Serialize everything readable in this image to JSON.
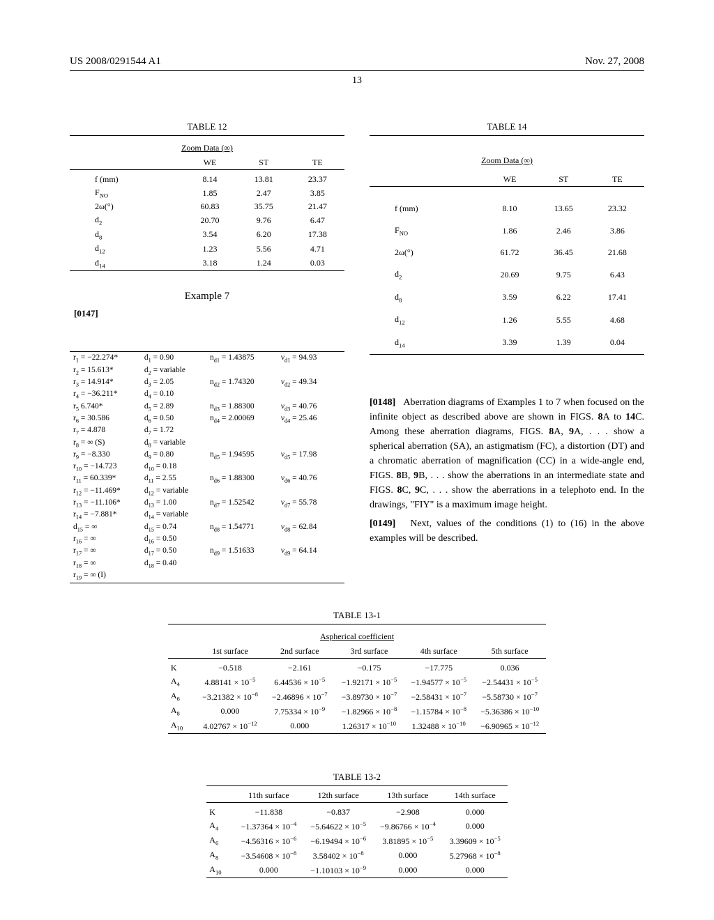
{
  "header": {
    "left": "US 2008/0291544 A1",
    "right": "Nov. 27, 2008",
    "page_number": "13"
  },
  "table12": {
    "title": "TABLE 12",
    "subtitle": "Zoom Data (∞)",
    "cols": [
      "WE",
      "ST",
      "TE"
    ],
    "rows": [
      {
        "label": "f (mm)",
        "vals": [
          "8.14",
          "13.81",
          "23.37"
        ]
      },
      {
        "label": "F<sub>NO</sub>",
        "vals": [
          "1.85",
          "2.47",
          "3.85"
        ]
      },
      {
        "label": "2ω(°)",
        "vals": [
          "60.83",
          "35.75",
          "21.47"
        ]
      },
      {
        "label": "d<sub>2</sub>",
        "vals": [
          "20.70",
          "9.76",
          "6.47"
        ]
      },
      {
        "label": "d<sub>8</sub>",
        "vals": [
          "3.54",
          "6.20",
          "17.38"
        ]
      },
      {
        "label": "d<sub>12</sub>",
        "vals": [
          "1.23",
          "5.56",
          "4.71"
        ]
      },
      {
        "label": "d<sub>14</sub>",
        "vals": [
          "3.18",
          "1.24",
          "0.03"
        ]
      }
    ]
  },
  "example7": {
    "title": "Example 7",
    "para": "[0147]",
    "lens_rows": [
      [
        "r<sub>1</sub> = −22.274*",
        "d<sub>1</sub> = 0.90",
        "n<sub>d1</sub> = 1.43875",
        "ν<sub>d1</sub> = 94.93"
      ],
      [
        "r<sub>2</sub> = 15.613*",
        "d<sub>2</sub> = variable",
        "",
        ""
      ],
      [
        "r<sub>3</sub> = 14.914*",
        "d<sub>3</sub> = 2.05",
        "n<sub>d2</sub> = 1.74320",
        "ν<sub>d2</sub> = 49.34"
      ],
      [
        "r<sub>4</sub> = −36.211*",
        "d<sub>4</sub> = 0.10",
        "",
        ""
      ],
      [
        "r<sub>5</sub> 6.740*",
        "d<sub>5</sub> = 2.89",
        "n<sub>d3</sub> = 1.88300",
        "ν<sub>d3</sub> = 40.76"
      ],
      [
        "r<sub>6</sub> = 30.586",
        "d<sub>6</sub> = 0.50",
        "n<sub>d4</sub> = 2.00069",
        "ν<sub>d4</sub> = 25.46"
      ],
      [
        "r<sub>7</sub> = 4.878",
        "d<sub>7</sub> = 1.72",
        "",
        ""
      ],
      [
        "r<sub>8</sub> = ∞ (S)",
        "d<sub>8</sub> = variable",
        "",
        ""
      ],
      [
        "r<sub>9</sub> = −8.330",
        "d<sub>9</sub> = 0.80",
        "n<sub>d5</sub> = 1.94595",
        "ν<sub>d5</sub> = 17.98"
      ],
      [
        "r<sub>10</sub> = −14.723",
        "d<sub>10</sub> = 0.18",
        "",
        ""
      ],
      [
        "r<sub>11</sub> = 60.339*",
        "d<sub>11</sub> = 2.55",
        "n<sub>d6</sub> = 1.88300",
        "ν<sub>d6</sub> = 40.76"
      ],
      [
        "r<sub>12</sub> = −11.469*",
        "d<sub>12</sub> = variable",
        "",
        ""
      ],
      [
        "r<sub>13</sub> = −11.106*",
        "d<sub>13</sub> = 1.00",
        "n<sub>d7</sub> = 1.52542",
        "ν<sub>d7</sub> = 55.78"
      ],
      [
        "r<sub>14</sub> = −7.881*",
        "d<sub>14</sub> = variable",
        "",
        ""
      ],
      [
        "d<sub>15</sub> = ∞",
        "d<sub>15</sub> = 0.74",
        "n<sub>d8</sub> = 1.54771",
        "ν<sub>d8</sub> = 62.84"
      ],
      [
        "r<sub>16</sub> = ∞",
        "d<sub>16</sub> = 0.50",
        "",
        ""
      ],
      [
        "r<sub>17</sub> = ∞",
        "d<sub>17</sub> = 0.50",
        "n<sub>d9</sub> = 1.51633",
        "ν<sub>d9</sub> = 64.14"
      ],
      [
        "r<sub>18</sub> = ∞",
        "d<sub>18</sub> = 0.40",
        "",
        ""
      ],
      [
        "r<sub>19</sub> = ∞ (I)",
        "",
        "",
        ""
      ]
    ]
  },
  "table14": {
    "title": "TABLE 14",
    "subtitle": "Zoom Data (∞)",
    "cols": [
      "WE",
      "ST",
      "TE"
    ],
    "rows": [
      {
        "label": "f (mm)",
        "vals": [
          "8.10",
          "13.65",
          "23.32"
        ]
      },
      {
        "label": "F<sub>NO</sub>",
        "vals": [
          "1.86",
          "2.46",
          "3.86"
        ]
      },
      {
        "label": "2ω(°)",
        "vals": [
          "61.72",
          "36.45",
          "21.68"
        ]
      },
      {
        "label": "d<sub>2</sub>",
        "vals": [
          "20.69",
          "9.75",
          "6.43"
        ]
      },
      {
        "label": "d<sub>8</sub>",
        "vals": [
          "3.59",
          "6.22",
          "17.41"
        ]
      },
      {
        "label": "d<sub>12</sub>",
        "vals": [
          "1.26",
          "5.55",
          "4.68"
        ]
      },
      {
        "label": "d<sub>14</sub>",
        "vals": [
          "3.39",
          "1.39",
          "0.04"
        ]
      }
    ]
  },
  "para148": {
    "label": "[0148]",
    "text": "Aberration diagrams of Examples 1 to 7 when focused on the infinite object as described above are shown in FIGS. 8A to 14C. Among these aberration diagrams, FIGS. 8A, 9A, . . . show a spherical aberration (SA), an astigmatism (FC), a distortion (DT) and a chromatic aberration of magnification (CC) in a wide-angle end, FIGS. 8B, 9B, . . . show the aberrations in an intermediate state and FIGS. 8C, 9C, . . . show the aberrations in a telephoto end. In the drawings, \"FIY\" is a maximum image height."
  },
  "para149": {
    "label": "[0149]",
    "text": "Next, values of the conditions (1) to (16) in the above examples will be described."
  },
  "table13_1": {
    "title": "TABLE 13-1",
    "subtitle": "Aspherical coefficient",
    "cols": [
      "1st surface",
      "2nd surface",
      "3rd surface",
      "4th surface",
      "5th surface"
    ],
    "row_labels": [
      "K",
      "A<sub>4</sub>",
      "A<sub>6</sub>",
      "A<sub>8</sub>",
      "A<sub>10</sub>"
    ],
    "data": [
      [
        "−0.518",
        "−2.161",
        "−0.175",
        "−17.775",
        "0.036"
      ],
      [
        "4.88141 × 10<sup>−5</sup>",
        "6.44536 × 10<sup>−5</sup>",
        "−1.92171 × 10<sup>−5</sup>",
        "−1.94577 × 10<sup>−5</sup>",
        "−2.54431 × 10<sup>−5</sup>"
      ],
      [
        "−3.21382 × 10<sup>−8</sup>",
        "−2.46896 × 10<sup>−7</sup>",
        "−3.89730 × 10<sup>−7</sup>",
        "−2.58431 × 10<sup>−7</sup>",
        "−5.58730 × 10<sup>−7</sup>"
      ],
      [
        "0.000",
        "7.75334 × 10<sup>−9</sup>",
        "−1.82966 × 10<sup>−8</sup>",
        "−1.15784 × 10<sup>−8</sup>",
        "−5.36386 × 10<sup>−10</sup>"
      ],
      [
        "4.02767 × 10<sup>−12</sup>",
        "0.000",
        "1.26317 × 10<sup>−10</sup>",
        "1.32488 × 10<sup>−10</sup>",
        "−6.90965 × 10<sup>−12</sup>"
      ]
    ]
  },
  "table13_2": {
    "title": "TABLE 13-2",
    "cols": [
      "11th surface",
      "12th surface",
      "13th surface",
      "14th surface"
    ],
    "row_labels": [
      "K",
      "A<sub>4</sub>",
      "A<sub>6</sub>",
      "A<sub>8</sub>",
      "A<sub>10</sub>"
    ],
    "data": [
      [
        "−11.838",
        "−0.837",
        "−2.908",
        "0.000"
      ],
      [
        "−1.37364 × 10<sup>−4</sup>",
        "−5.64622 × 10<sup>−5</sup>",
        "−9.86766 × 10<sup>−4</sup>",
        "0.000"
      ],
      [
        "−4.56316 × 10<sup>−6</sup>",
        "−6.19494 × 10<sup>−6</sup>",
        "3.81895 × 10<sup>−5</sup>",
        "3.39609 × 10<sup>−5</sup>"
      ],
      [
        "−3.54608 × 10<sup>−8</sup>",
        "3.58402 × 10<sup>−8</sup>",
        "0.000",
        "5.27968 × 10<sup>−8</sup>"
      ],
      [
        "0.000",
        "−1.10103 × 10<sup>−9</sup>",
        "0.000",
        "0.000"
      ]
    ]
  }
}
